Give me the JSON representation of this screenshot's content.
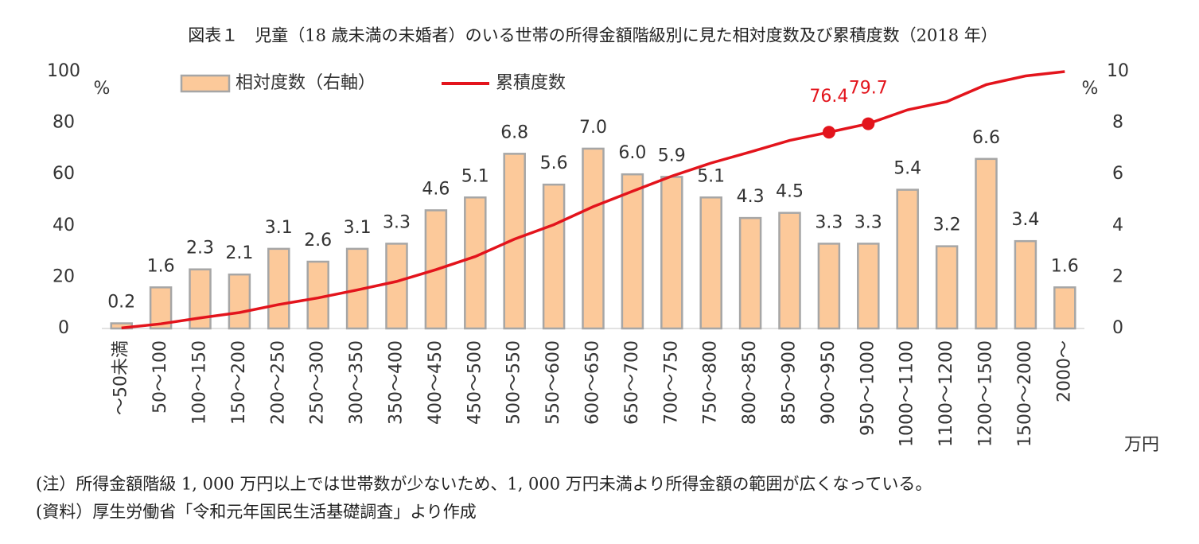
{
  "chart_data": {
    "type": "combo",
    "title": "図表１　児童（18 歳未満の未婚者）のいる世帯の所得金額階級別に見た相対度数及び累積度数（2018 年）",
    "categories": [
      "～50未満",
      "50～100",
      "100～150",
      "150～200",
      "200～250",
      "250～300",
      "300～350",
      "350～400",
      "400～450",
      "450～500",
      "500～550",
      "550～600",
      "600～650",
      "650～700",
      "700～750",
      "750～800",
      "800～850",
      "850～900",
      "900～950",
      "950～1000",
      "1000～1100",
      "1100～1200",
      "1200～1500",
      "1500～2000",
      "2000～"
    ],
    "series": [
      {
        "name": "相対度数（右軸）",
        "type": "bar",
        "axis": "y2",
        "color": "#fcc99a",
        "stroke": "#a6a6a6",
        "values": [
          0.2,
          1.6,
          2.3,
          2.1,
          3.1,
          2.6,
          3.1,
          3.3,
          4.6,
          5.1,
          6.8,
          5.6,
          7.0,
          6.0,
          5.9,
          5.1,
          4.3,
          4.5,
          3.3,
          3.3,
          5.4,
          3.2,
          6.6,
          3.4,
          1.6
        ],
        "value_labels": [
          "0.2",
          "1.6",
          "2.3",
          "2.1",
          "3.1",
          "2.6",
          "3.1",
          "3.3",
          "4.6",
          "5.1",
          "6.8",
          "5.6",
          "7.0",
          "6.0",
          "5.9",
          "5.1",
          "4.3",
          "4.5",
          "3.3",
          "3.3",
          "5.4",
          "3.2",
          "6.6",
          "3.4",
          "1.6"
        ]
      },
      {
        "name": "累積度数",
        "type": "line",
        "axis": "y",
        "color": "#e3141c",
        "values": [
          0.2,
          1.8,
          4.1,
          6.2,
          9.3,
          11.9,
          15.0,
          18.3,
          22.9,
          28.0,
          34.8,
          40.4,
          47.4,
          53.4,
          59.3,
          64.4,
          68.7,
          73.2,
          76.4,
          79.7,
          85.1,
          88.3,
          94.9,
          98.3,
          100
        ],
        "marker_indices": [
          18,
          19
        ]
      }
    ],
    "ylim": [
      0,
      100
    ],
    "yticks": [
      0,
      20,
      40,
      60,
      80,
      100
    ],
    "y_unit": "%",
    "y2lim": [
      0,
      10
    ],
    "y2ticks": [
      0,
      2,
      4,
      6,
      8,
      10
    ],
    "y2_unit": "%",
    "x_unit": "万円",
    "notes": [
      "(注）所得金額階級 1, 000 万円以上では世帯数が少ないため、1, 000 万円未満より所得金額の範囲が広くなっている。",
      "(資料）厚生労働省「令和元年国民生活基礎調査」より作成"
    ]
  }
}
